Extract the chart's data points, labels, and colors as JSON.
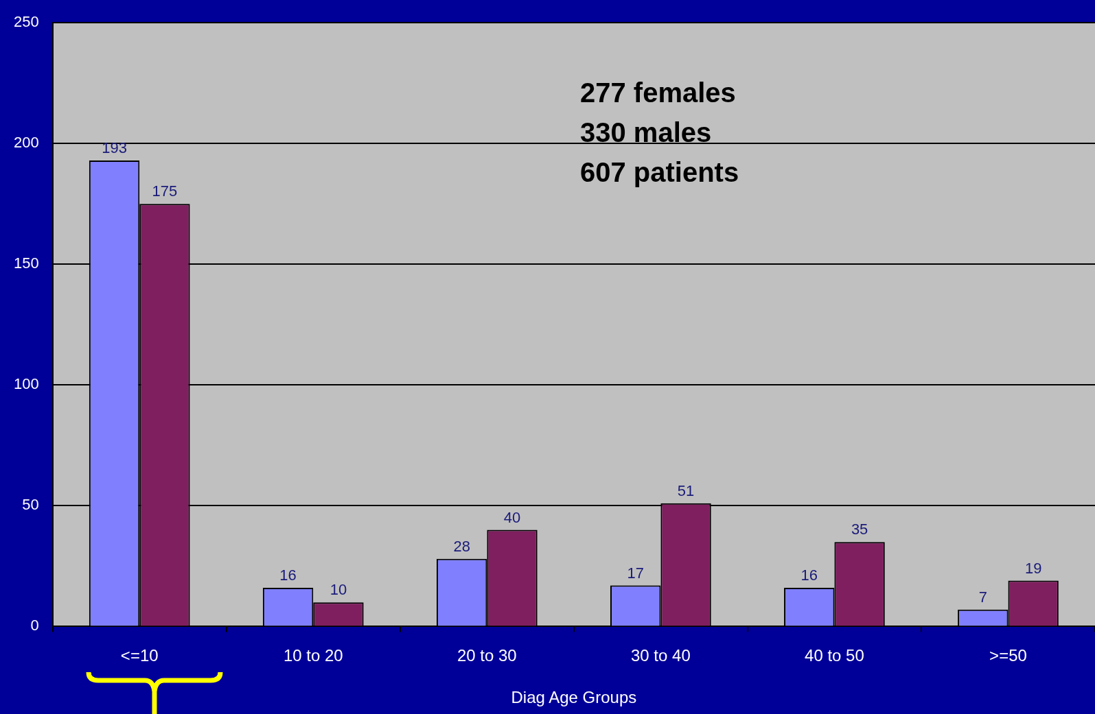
{
  "chart_data": {
    "type": "bar",
    "xlabel": "Diag Age Groups",
    "categories": [
      "<=10",
      "10 to 20",
      "20 to 30",
      "30 to 40",
      "40 to 50",
      ">=50"
    ],
    "series": [
      {
        "color": "#8080ff",
        "values": [
          193,
          16,
          28,
          17,
          16,
          7
        ]
      },
      {
        "color": "#7f1f5f",
        "values": [
          175,
          10,
          40,
          51,
          35,
          19
        ]
      }
    ],
    "ylim": [
      0,
      250
    ],
    "yticks": [
      0,
      50,
      100,
      150,
      200,
      250
    ],
    "grid": "y",
    "legend": false,
    "data_labels": true,
    "annotations": [
      "277 females",
      "330 males",
      "607 patients"
    ]
  }
}
